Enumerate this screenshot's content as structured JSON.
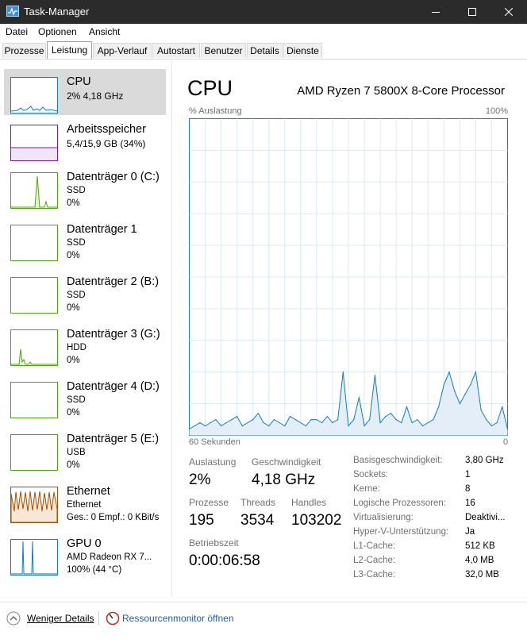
{
  "window": {
    "title": "Task-Manager"
  },
  "menu": [
    "Datei",
    "Optionen",
    "Ansicht"
  ],
  "tabs": [
    "Prozesse",
    "Leistung",
    "App-Verlauf",
    "Autostart",
    "Benutzer",
    "Details",
    "Dienste"
  ],
  "active_tab": "Leistung",
  "sidebar": [
    {
      "name": "CPU",
      "line1": "2% 4,18 GHz",
      "line2": "",
      "color": "#117dbb",
      "selected": true
    },
    {
      "name": "Arbeitsspeicher",
      "line1": "5,4/15,9 GB (34%)",
      "line2": "",
      "color": "#8b12ae",
      "selected": false
    },
    {
      "name": "Datenträger 0 (C:)",
      "line1": "SSD",
      "line2": "0%",
      "color": "#4da60c",
      "selected": false
    },
    {
      "name": "Datenträger 1",
      "line1": "SSD",
      "line2": "0%",
      "color": "#4da60c",
      "selected": false
    },
    {
      "name": "Datenträger 2 (B:)",
      "line1": "SSD",
      "line2": "0%",
      "color": "#4da60c",
      "selected": false
    },
    {
      "name": "Datenträger 3 (G:)",
      "line1": "HDD",
      "line2": "0%",
      "color": "#4da60c",
      "selected": false
    },
    {
      "name": "Datenträger 4 (D:)",
      "line1": "SSD",
      "line2": "0%",
      "color": "#4da60c",
      "selected": false
    },
    {
      "name": "Datenträger 5 (E:)",
      "line1": "USB",
      "line2": "0%",
      "color": "#4da60c",
      "selected": false
    },
    {
      "name": "Ethernet",
      "line1": "Ethernet",
      "line2": "Ges.: 0  Empf.: 0 KBit/s",
      "color": "#a74f01",
      "selected": false
    },
    {
      "name": "GPU 0",
      "line1": "AMD Radeon RX 7...",
      "line2": "100% (44 °C)",
      "color": "#117dbb",
      "selected": false
    }
  ],
  "main": {
    "title": "CPU",
    "processor": "AMD Ryzen 7 5800X 8-Core Processor",
    "graph_top_left": "% Auslastung",
    "graph_top_right": "100%",
    "graph_bottom_left": "60 Sekunden",
    "graph_bottom_right": "0"
  },
  "stats": {
    "auslastung_label": "Auslastung",
    "auslastung_value": "2%",
    "geschwindigkeit_label": "Geschwindigkeit",
    "geschwindigkeit_value": "4,18 GHz",
    "prozesse_label": "Prozesse",
    "prozesse_value": "195",
    "threads_label": "Threads",
    "threads_value": "3534",
    "handles_label": "Handles",
    "handles_value": "103202",
    "betriebszeit_label": "Betriebszeit",
    "betriebszeit_value": "0:00:06:58"
  },
  "info": [
    {
      "label": "Basisgeschwindigkeit:",
      "value": "3,80 GHz"
    },
    {
      "label": "Sockets:",
      "value": "1"
    },
    {
      "label": "Kerne:",
      "value": "8"
    },
    {
      "label": "Logische Prozessoren:",
      "value": "16"
    },
    {
      "label": "Virtualisierung:",
      "value": "Deaktivi..."
    },
    {
      "label": "Hyper-V-Unterstützung:",
      "value": "Ja"
    },
    {
      "label": "L1-Cache:",
      "value": "512 KB"
    },
    {
      "label": "L2-Cache:",
      "value": "4,0 MB"
    },
    {
      "label": "L3-Cache:",
      "value": "32,0 MB"
    }
  ],
  "footer": {
    "fewer_details": "Weniger Details",
    "resource_monitor": "Ressourcenmonitor öffnen"
  },
  "chart_data": {
    "type": "area",
    "title": "CPU",
    "ylabel": "% Auslastung",
    "xlabel": "60 Sekunden",
    "ylim": [
      0,
      100
    ],
    "x": [
      60,
      59,
      58,
      57,
      56,
      55,
      54,
      53,
      52,
      51,
      50,
      49,
      48,
      47,
      46,
      45,
      44,
      43,
      42,
      41,
      40,
      39,
      38,
      37,
      36,
      35,
      34,
      33,
      32,
      31,
      30,
      29,
      28,
      27,
      26,
      25,
      24,
      23,
      22,
      21,
      20,
      19,
      18,
      17,
      16,
      15,
      14,
      13,
      12,
      11,
      10,
      9,
      8,
      7,
      6,
      5,
      4,
      3,
      2,
      1,
      0
    ],
    "series": [
      {
        "values": [
          2,
          3,
          4,
          3,
          4,
          5,
          3,
          4,
          5,
          6,
          3,
          4,
          5,
          7,
          4,
          3,
          5,
          4,
          3,
          6,
          5,
          4,
          3,
          5,
          5,
          4,
          6,
          4,
          5,
          20,
          3,
          5,
          12,
          3,
          5,
          19,
          4,
          6,
          7,
          5,
          4,
          9,
          4,
          5,
          3,
          4,
          5,
          9,
          16,
          20,
          14,
          10,
          13,
          16,
          20,
          8,
          5,
          3,
          4,
          9,
          2
        ]
      }
    ]
  }
}
